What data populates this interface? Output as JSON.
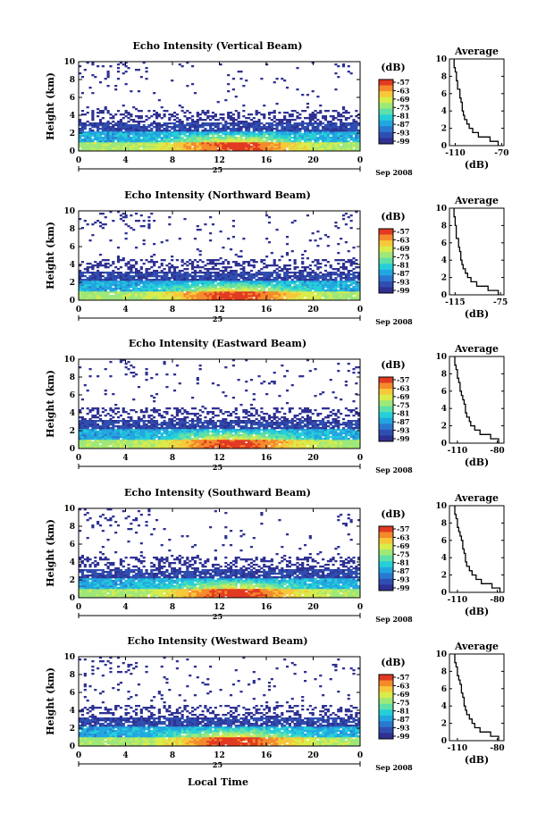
{
  "figure": {
    "date_label": "Sep 2008",
    "day_label": "25",
    "xlabel": "Local Time",
    "ylabel": "Height (km)",
    "avg_title": "Average",
    "avg_xlabel": "(dB)",
    "cb_unit": "(dB)",
    "cb_ticks": [
      "-57",
      "-63",
      "-69",
      "-75",
      "-81",
      "-87",
      "-93",
      "-99"
    ],
    "colormap": [
      "#ffffff",
      "#2e3192",
      "#2f4fb0",
      "#2a78d0",
      "#22a6e0",
      "#26cfd8",
      "#5fe0a8",
      "#9ee87a",
      "#d8ec4c",
      "#f6c83a",
      "#f48a2c",
      "#e23a22"
    ]
  },
  "chart_data": [
    {
      "type": "heatmap",
      "title": "Echo Intensity (Vertical Beam)",
      "xlabel": "Local Time",
      "ylabel": "Height (km)",
      "xlim": [
        0,
        24
      ],
      "ylim": [
        0,
        10
      ],
      "xticks": [
        "0",
        "4",
        "8",
        "12",
        "16",
        "20",
        "0"
      ],
      "yticks": [
        "0",
        "2",
        "4",
        "6",
        "8",
        "10"
      ],
      "colorbar": {
        "unit": "(dB)",
        "range": [
          -99,
          -57
        ],
        "ticks": [
          -57,
          -63,
          -69,
          -75,
          -81,
          -87,
          -93,
          -99
        ]
      },
      "average_profile": {
        "title": "Average",
        "xlabel": "(dB)",
        "xlim": [
          -115,
          -68
        ],
        "xticks": [
          "-110",
          "-70"
        ],
        "height_km": [
          0,
          0.5,
          1,
          1.5,
          2,
          2.5,
          3,
          3.5,
          4,
          4.5,
          5,
          5.5,
          6,
          6.5,
          7,
          7.5,
          8,
          8.5,
          9,
          9.5
        ],
        "db": [
          -73,
          -80,
          -90,
          -95,
          -98,
          -100,
          -102,
          -103,
          -104,
          -104,
          -105,
          -106,
          -106,
          -108,
          -108,
          -109,
          -109,
          -110,
          -111,
          -111
        ]
      }
    },
    {
      "type": "heatmap",
      "title": "Echo Intensity (Northward Beam)",
      "xlabel": "Local Time",
      "ylabel": "Height (km)",
      "xlim": [
        0,
        24
      ],
      "ylim": [
        0,
        10
      ],
      "xticks": [
        "0",
        "4",
        "8",
        "12",
        "16",
        "20",
        "0"
      ],
      "yticks": [
        "0",
        "2",
        "4",
        "6",
        "8",
        "10"
      ],
      "colorbar": {
        "unit": "(dB)",
        "range": [
          -99,
          -57
        ],
        "ticks": [
          -57,
          -63,
          -69,
          -75,
          -81,
          -87,
          -93,
          -99
        ]
      },
      "average_profile": {
        "title": "Average",
        "xlabel": "(dB)",
        "xlim": [
          -120,
          -72
        ],
        "xticks": [
          "-115",
          "-75"
        ],
        "height_km": [
          0,
          0.5,
          1,
          1.5,
          2,
          2.5,
          3,
          3.5,
          4,
          4.5,
          5,
          5.5,
          6,
          6.5,
          7,
          7.5,
          8,
          8.5,
          9,
          9.5
        ],
        "db": [
          -77,
          -86,
          -96,
          -101,
          -104,
          -106,
          -108,
          -109,
          -110,
          -110,
          -111,
          -112,
          -112,
          -114,
          -114,
          -114,
          -115,
          -115,
          -116,
          -116
        ]
      }
    },
    {
      "type": "heatmap",
      "title": "Echo Intensity (Eastward Beam)",
      "xlabel": "Local Time",
      "ylabel": "Height (km)",
      "xlim": [
        0,
        24
      ],
      "ylim": [
        0,
        10
      ],
      "xticks": [
        "0",
        "4",
        "8",
        "12",
        "16",
        "20",
        "0"
      ],
      "yticks": [
        "0",
        "2",
        "4",
        "6",
        "8",
        "10"
      ],
      "colorbar": {
        "unit": "(dB)",
        "range": [
          -99,
          -57
        ],
        "ticks": [
          -57,
          -63,
          -69,
          -75,
          -81,
          -87,
          -93,
          -99
        ]
      },
      "average_profile": {
        "title": "Average",
        "xlabel": "(dB)",
        "xlim": [
          -116,
          -75
        ],
        "xticks": [
          "-110",
          "-80"
        ],
        "height_km": [
          0,
          0.5,
          1,
          1.5,
          2,
          2.5,
          3,
          3.5,
          4,
          4.5,
          5,
          5.5,
          6,
          6.5,
          7,
          7.5,
          8,
          8.5,
          9,
          9.5
        ],
        "db": [
          -79,
          -85,
          -93,
          -97,
          -100,
          -101,
          -103,
          -104,
          -104,
          -105,
          -106,
          -107,
          -108,
          -108,
          -109,
          -110,
          -110,
          -111,
          -112,
          -112
        ]
      }
    },
    {
      "type": "heatmap",
      "title": "Echo Intensity (Southward Beam)",
      "xlabel": "Local Time",
      "ylabel": "Height (km)",
      "xlim": [
        0,
        24
      ],
      "ylim": [
        0,
        10
      ],
      "xticks": [
        "0",
        "4",
        "8",
        "12",
        "16",
        "20",
        "0"
      ],
      "yticks": [
        "0",
        "2",
        "4",
        "6",
        "8",
        "10"
      ],
      "colorbar": {
        "unit": "(dB)",
        "range": [
          -99,
          -57
        ],
        "ticks": [
          -57,
          -63,
          -69,
          -75,
          -81,
          -87,
          -93,
          -99
        ]
      },
      "average_profile": {
        "title": "Average",
        "xlabel": "(dB)",
        "xlim": [
          -116,
          -75
        ],
        "xticks": [
          "-110",
          "-80"
        ],
        "height_km": [
          0,
          0.5,
          1,
          1.5,
          2,
          2.5,
          3,
          3.5,
          4,
          4.5,
          5,
          5.5,
          6,
          6.5,
          7,
          7.5,
          8,
          8.5,
          9,
          9.5
        ],
        "db": [
          -78,
          -84,
          -92,
          -96,
          -99,
          -101,
          -103,
          -104,
          -104,
          -105,
          -106,
          -106,
          -107,
          -108,
          -109,
          -110,
          -110,
          -111,
          -112,
          -112
        ]
      }
    },
    {
      "type": "heatmap",
      "title": "Echo Intensity (Westward Beam)",
      "xlabel": "Local Time",
      "ylabel": "Height (km)",
      "xlim": [
        0,
        24
      ],
      "ylim": [
        0,
        10
      ],
      "xticks": [
        "0",
        "4",
        "8",
        "12",
        "16",
        "20",
        "0"
      ],
      "yticks": [
        "0",
        "2",
        "4",
        "6",
        "8",
        "10"
      ],
      "colorbar": {
        "unit": "(dB)",
        "range": [
          -99,
          -57
        ],
        "ticks": [
          -57,
          -63,
          -69,
          -75,
          -81,
          -87,
          -93,
          -99
        ]
      },
      "average_profile": {
        "title": "Average",
        "xlabel": "(dB)",
        "xlim": [
          -116,
          -75
        ],
        "xticks": [
          "-110",
          "-80"
        ],
        "height_km": [
          0,
          0.5,
          1,
          1.5,
          2,
          2.5,
          3,
          3.5,
          4,
          4.5,
          5,
          5.5,
          6,
          6.5,
          7,
          7.5,
          8,
          8.5,
          9,
          9.5
        ],
        "db": [
          -79,
          -85,
          -93,
          -97,
          -99,
          -101,
          -103,
          -104,
          -105,
          -105,
          -106,
          -107,
          -107,
          -108,
          -109,
          -110,
          -110,
          -111,
          -112,
          -112
        ]
      }
    }
  ]
}
